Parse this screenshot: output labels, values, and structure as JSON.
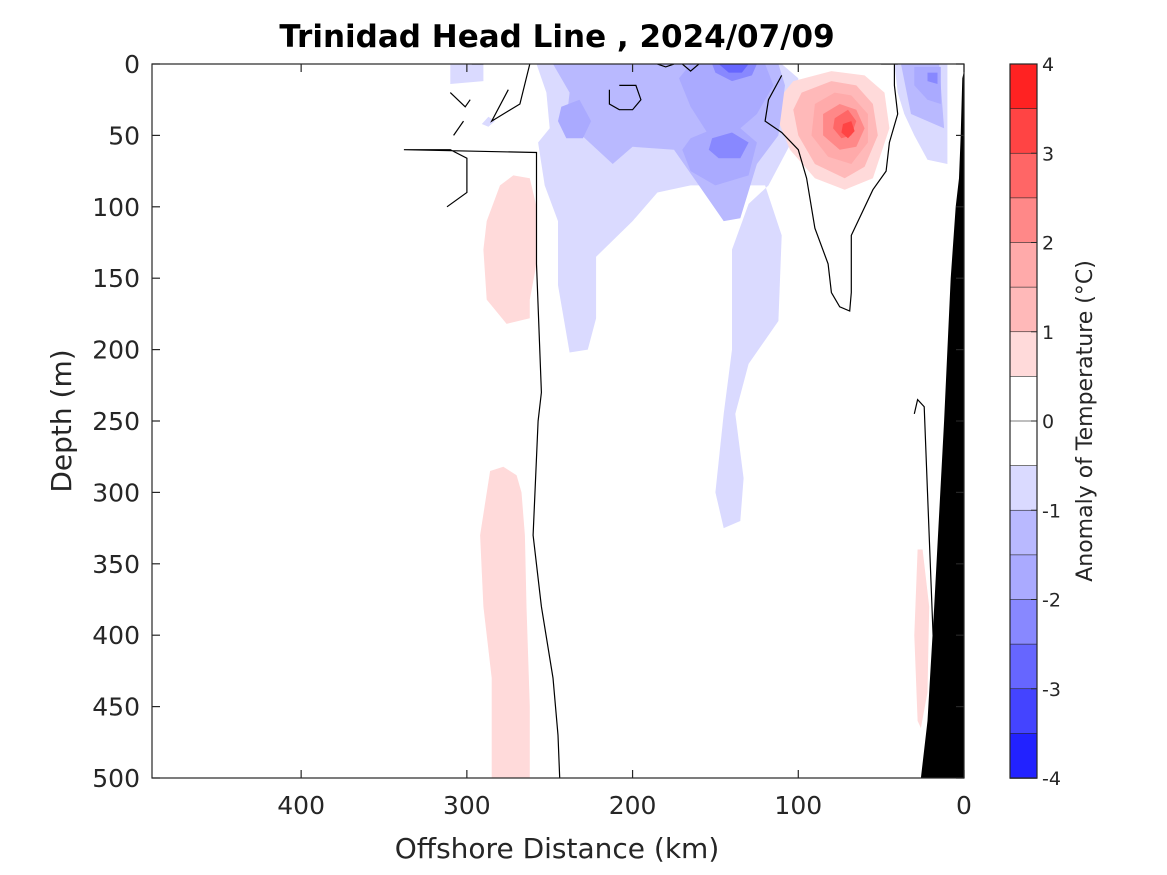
{
  "chart_data": {
    "type": "heatmap",
    "title": "Trinidad Head Line , 2024/07/09",
    "xlabel": "Offshore Distance (km)",
    "ylabel": "Depth (m)",
    "xlim": [
      490,
      0
    ],
    "ylim": [
      0,
      500
    ],
    "x_ticks": [
      400,
      300,
      200,
      100,
      0
    ],
    "y_ticks": [
      0,
      50,
      100,
      150,
      200,
      250,
      300,
      350,
      400,
      450,
      500
    ],
    "colorbar": {
      "label": "Anomaly of Temperature (°C)",
      "range": [
        -4,
        4
      ],
      "step": 0.5,
      "ticks": [
        4,
        3,
        2,
        1,
        0,
        -1,
        -2,
        -3,
        -4
      ]
    },
    "fill_colors": {
      "-4": "#0000ff",
      "-3.5": "#2222ff",
      "-3": "#4444ff",
      "-2.5": "#6666ff",
      "-2": "#8888ff",
      "-1.5": "#aaaaff",
      "-1": "#b9b9ff",
      "-0.5": "#dadaff",
      "0": "#ffffff",
      "0.5": "#ffdada",
      "1": "#ffb9b9",
      "1.5": "#ffaaaa",
      "2": "#ff8888",
      "2.5": "#ff6666",
      "3": "#ff4444",
      "3.5": "#ff2222",
      "4": "#ff0000"
    },
    "bathymetry_color": "#000000",
    "zero_contour_color": "#000000",
    "regions": [
      {
        "level": -0.5,
        "points": [
          [
            310,
            0
          ],
          [
            290,
            0
          ],
          [
            290,
            12
          ],
          [
            310,
            14
          ]
        ]
      },
      {
        "level": -0.5,
        "points": [
          [
            287,
            37
          ],
          [
            283,
            40
          ],
          [
            287,
            44
          ],
          [
            291,
            42
          ]
        ]
      },
      {
        "level": -0.5,
        "points": [
          [
            258,
            0
          ],
          [
            130,
            0
          ],
          [
            110,
            0
          ],
          [
            100,
            10
          ],
          [
            102,
            50
          ],
          [
            118,
            85
          ],
          [
            130,
            98
          ],
          [
            140,
            130
          ],
          [
            140,
            200
          ],
          [
            145,
            245
          ],
          [
            150,
            300
          ],
          [
            145,
            325
          ],
          [
            135,
            320
          ],
          [
            133,
            290
          ],
          [
            138,
            245
          ],
          [
            130,
            210
          ],
          [
            112,
            180
          ],
          [
            110,
            120
          ],
          [
            120,
            85
          ],
          [
            165,
            85
          ],
          [
            185,
            90
          ],
          [
            200,
            110
          ],
          [
            222,
            135
          ],
          [
            222,
            178
          ],
          [
            227,
            200
          ],
          [
            238,
            202
          ],
          [
            245,
            155
          ],
          [
            245,
            110
          ],
          [
            253,
            85
          ],
          [
            257,
            55
          ],
          [
            250,
            45
          ],
          [
            252,
            20
          ]
        ]
      },
      {
        "level": -0.5,
        "points": [
          [
            42,
            0
          ],
          [
            10,
            0
          ],
          [
            10,
            70
          ],
          [
            22,
            67
          ],
          [
            30,
            50
          ],
          [
            36,
            35
          ],
          [
            40,
            20
          ]
        ]
      },
      {
        "level": -1,
        "points": [
          [
            248,
            0
          ],
          [
            130,
            0
          ],
          [
            112,
            0
          ],
          [
            108,
            15
          ],
          [
            112,
            50
          ],
          [
            125,
            70
          ],
          [
            135,
            108
          ],
          [
            145,
            110
          ],
          [
            160,
            85
          ],
          [
            175,
            60
          ],
          [
            200,
            58
          ],
          [
            212,
            70
          ],
          [
            240,
            40
          ],
          [
            238,
            20
          ]
        ]
      },
      {
        "level": -1,
        "points": [
          [
            38,
            0
          ],
          [
            15,
            0
          ],
          [
            12,
            45
          ],
          [
            22,
            40
          ],
          [
            32,
            35
          ]
        ]
      },
      {
        "level": -1.5,
        "points": [
          [
            243,
            30
          ],
          [
            232,
            25
          ],
          [
            225,
            40
          ],
          [
            230,
            52
          ],
          [
            240,
            52
          ],
          [
            245,
            40
          ]
        ]
      },
      {
        "level": -1.5,
        "points": [
          [
            165,
            0
          ],
          [
            120,
            0
          ],
          [
            115,
            15
          ],
          [
            125,
            35
          ],
          [
            140,
            50
          ],
          [
            155,
            48
          ],
          [
            165,
            30
          ],
          [
            172,
            10
          ]
        ]
      },
      {
        "level": -1.5,
        "points": [
          [
            165,
            52
          ],
          [
            140,
            40
          ],
          [
            125,
            55
          ],
          [
            130,
            78
          ],
          [
            150,
            85
          ],
          [
            165,
            75
          ],
          [
            170,
            60
          ]
        ]
      },
      {
        "level": -1.5,
        "points": [
          [
            30,
            2
          ],
          [
            14,
            2
          ],
          [
            14,
            28
          ],
          [
            22,
            25
          ],
          [
            30,
            15
          ]
        ]
      },
      {
        "level": -2,
        "points": [
          [
            152,
            0
          ],
          [
            125,
            0
          ],
          [
            128,
            8
          ],
          [
            140,
            12
          ],
          [
            150,
            6
          ]
        ]
      },
      {
        "level": -2,
        "points": [
          [
            152,
            52
          ],
          [
            140,
            48
          ],
          [
            130,
            55
          ],
          [
            135,
            66
          ],
          [
            148,
            66
          ],
          [
            154,
            60
          ]
        ]
      },
      {
        "level": -2,
        "points": [
          [
            22,
            6
          ],
          [
            16,
            6
          ],
          [
            16,
            14
          ],
          [
            22,
            12
          ]
        ]
      },
      {
        "level": -2.5,
        "points": [
          [
            148,
            0
          ],
          [
            130,
            0
          ],
          [
            134,
            6
          ],
          [
            142,
            6
          ]
        ]
      },
      {
        "level": 0.5,
        "points": [
          [
            103,
            12
          ],
          [
            80,
            5
          ],
          [
            60,
            8
          ],
          [
            48,
            20
          ],
          [
            45,
            45
          ],
          [
            55,
            80
          ],
          [
            72,
            88
          ],
          [
            90,
            80
          ],
          [
            105,
            60
          ],
          [
            112,
            40
          ],
          [
            110,
            22
          ]
        ]
      },
      {
        "level": 0.5,
        "points": [
          [
            212,
            20
          ],
          [
            205,
            20
          ],
          [
            202,
            30
          ],
          [
            208,
            30
          ]
        ]
      },
      {
        "level": 0.5,
        "points": [
          [
            272,
            78
          ],
          [
            262,
            80
          ],
          [
            258,
            100
          ],
          [
            258,
            140
          ],
          [
            262,
            165
          ],
          [
            262,
            178
          ],
          [
            276,
            182
          ],
          [
            288,
            165
          ],
          [
            290,
            130
          ],
          [
            288,
            110
          ],
          [
            280,
            85
          ]
        ]
      },
      {
        "level": 0.5,
        "points": [
          [
            278,
            282
          ],
          [
            286,
            285
          ],
          [
            292,
            330
          ],
          [
            290,
            380
          ],
          [
            285,
            430
          ],
          [
            285,
            500
          ],
          [
            262,
            500
          ],
          [
            262,
            450
          ],
          [
            264,
            380
          ],
          [
            265,
            330
          ],
          [
            267,
            300
          ],
          [
            270,
            288
          ]
        ]
      },
      {
        "level": 0.5,
        "points": [
          [
            25,
            340
          ],
          [
            28,
            340
          ],
          [
            30,
            400
          ],
          [
            28,
            460
          ],
          [
            26,
            465
          ],
          [
            22,
            440
          ],
          [
            21,
            380
          ]
        ]
      },
      {
        "level": 1,
        "points": [
          [
            98,
            20
          ],
          [
            80,
            12
          ],
          [
            65,
            15
          ],
          [
            55,
            28
          ],
          [
            52,
            50
          ],
          [
            60,
            72
          ],
          [
            72,
            80
          ],
          [
            90,
            70
          ],
          [
            100,
            50
          ],
          [
            103,
            32
          ]
        ]
      },
      {
        "level": 1.5,
        "points": [
          [
            90,
            28
          ],
          [
            78,
            20
          ],
          [
            68,
            22
          ],
          [
            58,
            35
          ],
          [
            58,
            55
          ],
          [
            68,
            70
          ],
          [
            82,
            65
          ],
          [
            92,
            50
          ]
        ]
      },
      {
        "level": 2,
        "points": [
          [
            85,
            35
          ],
          [
            75,
            28
          ],
          [
            65,
            32
          ],
          [
            60,
            45
          ],
          [
            65,
            58
          ],
          [
            75,
            60
          ],
          [
            85,
            50
          ]
        ]
      },
      {
        "level": 2.5,
        "points": [
          [
            78,
            38
          ],
          [
            70,
            32
          ],
          [
            65,
            40
          ],
          [
            68,
            50
          ],
          [
            74,
            52
          ],
          [
            79,
            45
          ]
        ]
      },
      {
        "level": 3,
        "points": [
          [
            73,
            42
          ],
          [
            68,
            40
          ],
          [
            66,
            47
          ],
          [
            70,
            52
          ],
          [
            74,
            48
          ]
        ]
      }
    ],
    "zero_contours": [
      [
        [
          290,
          0
        ],
        [
          297,
          0
        ]
      ],
      [
        [
          298,
          25
        ],
        [
          301,
          30
        ],
        [
          310,
          20
        ]
      ],
      [
        [
          302,
          40
        ],
        [
          308,
          50
        ]
      ],
      [
        [
          312,
          100
        ],
        [
          300,
          90
        ],
        [
          300,
          66
        ],
        [
          310,
          60
        ],
        [
          320,
          60
        ],
        [
          338,
          60
        ],
        [
          258,
          62
        ],
        [
          258,
          140
        ],
        [
          255,
          230
        ],
        [
          257,
          250
        ],
        [
          260,
          330
        ],
        [
          255,
          380
        ],
        [
          248,
          430
        ],
        [
          245,
          470
        ],
        [
          244,
          500
        ]
      ],
      [
        [
          262,
          0
        ],
        [
          268,
          28
        ],
        [
          285,
          40
        ],
        [
          275,
          18
        ]
      ],
      [
        [
          208,
          15
        ],
        [
          198,
          15
        ],
        [
          195,
          25
        ],
        [
          200,
          32
        ],
        [
          208,
          32
        ],
        [
          214,
          28
        ],
        [
          214,
          18
        ]
      ],
      [
        [
          185,
          0
        ],
        [
          180,
          2
        ],
        [
          175,
          0
        ]
      ],
      [
        [
          170,
          0
        ],
        [
          165,
          5
        ],
        [
          160,
          0
        ]
      ],
      [
        [
          110,
          8
        ],
        [
          118,
          25
        ],
        [
          120,
          40
        ],
        [
          110,
          48
        ],
        [
          100,
          60
        ],
        [
          95,
          80
        ],
        [
          90,
          115
        ],
        [
          82,
          140
        ],
        [
          80,
          160
        ],
        [
          75,
          170
        ],
        [
          69,
          173
        ],
        [
          68,
          160
        ],
        [
          68,
          120
        ],
        [
          55,
          88
        ],
        [
          47,
          75
        ],
        [
          45,
          55
        ],
        [
          40,
          35
        ],
        [
          42,
          15
        ],
        [
          42,
          0
        ]
      ],
      [
        [
          30,
          245
        ],
        [
          28,
          235
        ],
        [
          24,
          240
        ],
        [
          22,
          300
        ],
        [
          18,
          420
        ],
        [
          16,
          480
        ],
        [
          16,
          500
        ]
      ],
      [
        [
          50,
          0
        ],
        [
          40,
          0
        ]
      ]
    ],
    "bathymetry": [
      [
        0,
        5
      ],
      [
        1,
        10
      ],
      [
        2,
        50
      ],
      [
        3,
        80
      ],
      [
        5,
        100
      ],
      [
        8,
        150
      ],
      [
        12,
        250
      ],
      [
        18,
        380
      ],
      [
        22,
        460
      ],
      [
        26,
        500
      ],
      [
        0,
        500
      ]
    ]
  }
}
